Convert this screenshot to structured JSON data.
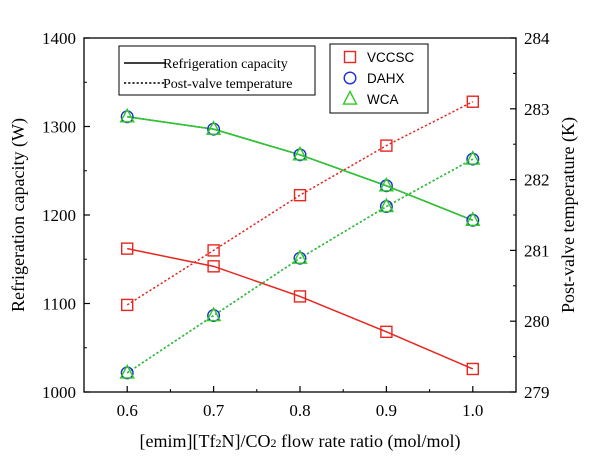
{
  "chart_data": {
    "type": "line",
    "x": [
      0.6,
      0.7,
      0.8,
      0.9,
      1.0
    ],
    "x_ticks": [
      "0.6",
      "0.7",
      "0.8",
      "0.9",
      "1.0"
    ],
    "xlabel_parts": [
      "[emim][Tf",
      "2",
      "N]/CO",
      "2",
      " flow rate ratio (mol/mol)"
    ],
    "ylabel_left": "Refrigeration capacity (W)",
    "ylabel_right": "Post-valve temperature (K)",
    "ylim_left": [
      1000,
      1400
    ],
    "ylim_right": [
      279,
      284
    ],
    "yticks_left": [
      "1000",
      "1100",
      "1200",
      "1300",
      "1400"
    ],
    "yticks_right": [
      "279",
      "280",
      "281",
      "282",
      "283",
      "284"
    ],
    "xlim": [
      0.55,
      1.05
    ],
    "grid": false,
    "legend_linestyle": [
      {
        "label": "Refrigeration capacity",
        "style": "solid"
      },
      {
        "label": "Post-valve temperature",
        "style": "dotted"
      }
    ],
    "legend_series": [
      {
        "label": "VCCSC",
        "marker": "square",
        "color": "#e8261e"
      },
      {
        "label": "DAHX",
        "marker": "circle",
        "color": "#1b2fd8"
      },
      {
        "label": "WCA",
        "marker": "triangle",
        "color": "#2ecc1f"
      }
    ],
    "series": [
      {
        "name": "VCCSC",
        "quantity": "Refrigeration capacity",
        "axis": "left",
        "linestyle": "solid",
        "marker": "square",
        "color": "#e8261e",
        "values": [
          1162,
          1142,
          1108,
          1068,
          1026
        ]
      },
      {
        "name": "DAHX",
        "quantity": "Refrigeration capacity",
        "axis": "left",
        "linestyle": "solid",
        "marker": "circle",
        "color": "#1b2fd8",
        "values": [
          1311,
          1297,
          1268,
          1233,
          1194
        ]
      },
      {
        "name": "WCA",
        "quantity": "Refrigeration capacity",
        "axis": "left",
        "linestyle": "solid",
        "marker": "triangle",
        "color": "#2ecc1f",
        "values": [
          1311,
          1297,
          1268,
          1233,
          1194
        ]
      },
      {
        "name": "VCCSC",
        "quantity": "Post-valve temperature",
        "axis": "right",
        "linestyle": "dotted",
        "marker": "square",
        "color": "#e8261e",
        "values": [
          280.23,
          281.0,
          281.78,
          282.48,
          283.1
        ]
      },
      {
        "name": "DAHX",
        "quantity": "Post-valve temperature",
        "axis": "right",
        "linestyle": "dotted",
        "marker": "circle",
        "color": "#1b2fd8",
        "values": [
          279.27,
          280.08,
          280.89,
          281.62,
          282.29
        ]
      },
      {
        "name": "WCA",
        "quantity": "Post-valve temperature",
        "axis": "right",
        "linestyle": "dotted",
        "marker": "triangle",
        "color": "#2ecc1f",
        "values": [
          279.27,
          280.08,
          280.89,
          281.62,
          282.29
        ]
      }
    ]
  }
}
